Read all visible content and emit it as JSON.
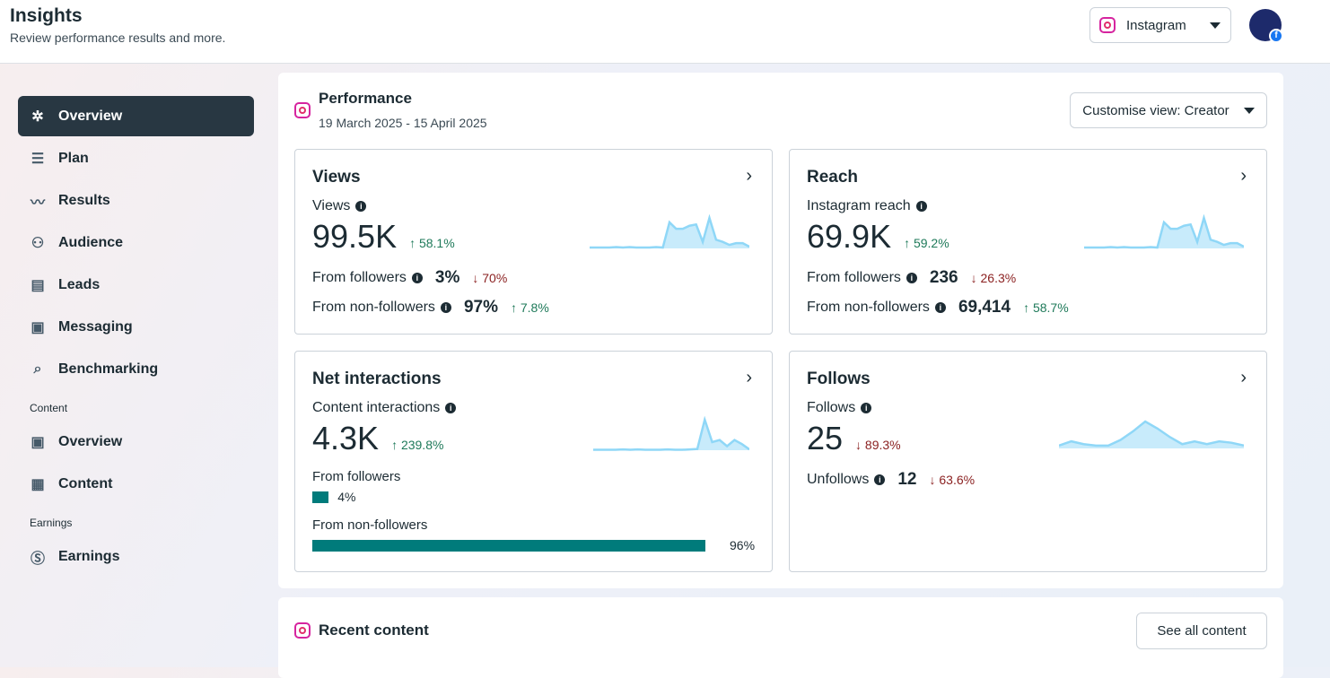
{
  "header": {
    "title": "Insights",
    "subtitle": "Review performance results and more.",
    "platform": "Instagram"
  },
  "sidebar": {
    "items": [
      {
        "label": "Overview",
        "icon": "hub-icon"
      },
      {
        "label": "Plan",
        "icon": "numbered-list-icon"
      },
      {
        "label": "Results",
        "icon": "line-chart-icon"
      },
      {
        "label": "Audience",
        "icon": "people-icon"
      },
      {
        "label": "Leads",
        "icon": "contact-card-icon"
      },
      {
        "label": "Messaging",
        "icon": "messaging-icon"
      },
      {
        "label": "Benchmarking",
        "icon": "benchmark-search-icon"
      }
    ],
    "content_section": "Content",
    "content_items": [
      {
        "label": "Overview"
      },
      {
        "label": "Content"
      }
    ],
    "earnings_section": "Earnings",
    "earnings_items": [
      {
        "label": "Earnings"
      }
    ]
  },
  "performance": {
    "title": "Performance",
    "date_range": "19 March 2025 - 15 April 2025",
    "customise": "Customise view: Creator",
    "views": {
      "title": "Views",
      "label": "Views",
      "value": "99.5K",
      "change": "↑ 58.1%",
      "f_label": "From followers",
      "f_value": "3%",
      "f_change": "↓ 70%",
      "nf_label": "From non-followers",
      "nf_value": "97%",
      "nf_change": "↑ 7.8%",
      "spark": [
        2,
        2,
        2,
        2,
        3,
        2,
        3,
        2,
        2,
        2,
        3,
        2,
        60,
        45,
        45,
        52,
        55,
        15,
        70,
        20,
        15,
        8,
        12,
        12,
        4
      ]
    },
    "reach": {
      "title": "Reach",
      "label": "Instagram reach",
      "value": "69.9K",
      "change": "↑ 59.2%",
      "f_label": "From followers",
      "f_value": "236",
      "f_change": "↓ 26.3%",
      "nf_label": "From non-followers",
      "nf_value": "69,414",
      "nf_change": "↑ 58.7%",
      "spark": [
        2,
        2,
        2,
        2,
        3,
        2,
        3,
        2,
        2,
        2,
        3,
        2,
        60,
        45,
        45,
        52,
        55,
        15,
        70,
        20,
        15,
        8,
        12,
        12,
        4
      ]
    },
    "interactions": {
      "title": "Net interactions",
      "label": "Content interactions",
      "value": "4.3K",
      "change": "↑ 239.8%",
      "f_label": "From followers",
      "f_pct": 4,
      "f_value": "4%",
      "nf_label": "From non-followers",
      "nf_pct": 96,
      "nf_value": "96%",
      "spark": [
        1,
        1,
        1,
        1,
        2,
        1,
        2,
        1,
        1,
        1,
        2,
        1,
        1,
        2,
        3,
        75,
        20,
        25,
        10,
        25,
        15,
        2
      ]
    },
    "follows": {
      "title": "Follows",
      "label": "Follows",
      "value": "25",
      "change": "↓ 89.3%",
      "u_label": "Unfollows",
      "u_value": "12",
      "u_change": "↓ 63.6%",
      "spark": [
        10,
        25,
        15,
        10,
        10,
        30,
        60,
        95,
        70,
        40,
        15,
        25,
        15,
        25,
        20,
        10
      ]
    }
  },
  "recent": {
    "title": "Recent content",
    "button": "See all content"
  },
  "colors": {
    "accent": "#283742",
    "up": "#1f7a5a",
    "down": "#8a1f1f",
    "bar": "#007b7b",
    "spark": "#8fd7f7"
  }
}
